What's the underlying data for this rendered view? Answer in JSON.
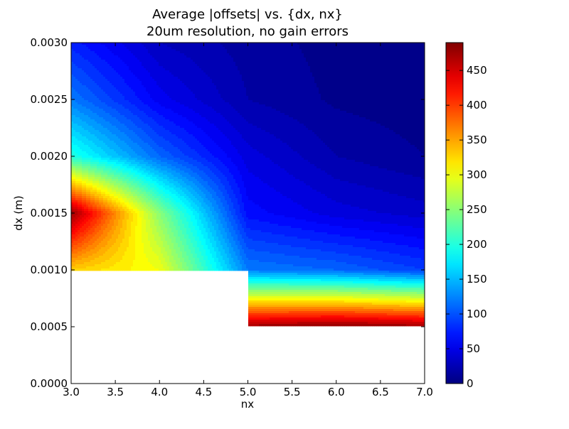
{
  "chart_data": {
    "type": "heatmap",
    "subtype": "filled-contour",
    "title": "Average |offsets| vs. {dx, nx}",
    "subtitle": "20um resolution, no gain errors",
    "xlabel": "nx",
    "ylabel": "dx (m)",
    "xlim": [
      3.0,
      7.0
    ],
    "ylim": [
      0.0,
      0.003
    ],
    "x_ticks": [
      "3.0",
      "3.5",
      "4.0",
      "4.5",
      "5.0",
      "5.5",
      "6.0",
      "6.5",
      "7.0"
    ],
    "y_ticks": [
      "0.0000",
      "0.0005",
      "0.0010",
      "0.0015",
      "0.0020",
      "0.0025",
      "0.0030"
    ],
    "colorbar": {
      "colormap": "jet",
      "range": [
        0,
        490
      ],
      "ticks": [
        "0",
        "50",
        "100",
        "150",
        "200",
        "250",
        "300",
        "350",
        "400",
        "450"
      ]
    },
    "x": [
      3,
      4,
      5,
      6,
      7
    ],
    "y": [
      0.0005,
      0.001,
      0.0015,
      0.002,
      0.0025,
      0.003
    ],
    "z": [
      [
        null,
        null,
        480,
        490,
        480
      ],
      [
        330,
        300,
        120,
        110,
        90
      ],
      [
        480,
        250,
        65,
        45,
        35
      ],
      [
        200,
        110,
        45,
        20,
        10
      ],
      [
        120,
        55,
        20,
        8,
        4
      ],
      [
        75,
        30,
        15,
        6,
        2
      ]
    ]
  }
}
